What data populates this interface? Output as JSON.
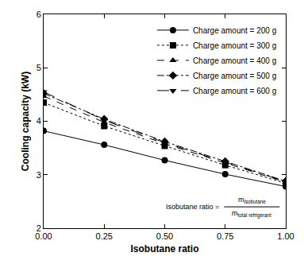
{
  "chart_data": {
    "type": "line",
    "x_label": "Isobutane ratio",
    "y_label": "Cooling capacity (kW)",
    "x": [
      0,
      0.25,
      0.5,
      0.75,
      1.0
    ],
    "series": [
      {
        "name": "Charge amount = 200 g",
        "color": "#000000",
        "marker": "circle",
        "line_style": "solid",
        "values": [
          3.82,
          3.56,
          3.27,
          3.01,
          2.78
        ]
      },
      {
        "name": "Charge amount = 300 g",
        "color": "#000000",
        "marker": "square",
        "line_style": "dot",
        "values": [
          4.35,
          3.91,
          3.54,
          3.18,
          2.84
        ]
      },
      {
        "name": "Charge amount = 400 g",
        "color": "#000000",
        "marker": "triangle-up",
        "line_style": "dash",
        "values": [
          4.47,
          3.98,
          3.58,
          3.22,
          2.86
        ]
      },
      {
        "name": "Charge amount = 500 g",
        "color": "#000000",
        "marker": "diamond",
        "line_style": "dashdot",
        "values": [
          4.52,
          4.04,
          3.62,
          3.25,
          2.88
        ]
      },
      {
        "name": "Charge amount = 600 g",
        "color": "#000000",
        "marker": "triangle-down",
        "line_style": "longdash",
        "values": [
          4.55,
          4.02,
          3.6,
          3.23,
          2.87
        ]
      }
    ],
    "xlim": [
      0,
      1.0
    ],
    "xticks": [
      {
        "value": 0,
        "label": "0.00"
      },
      {
        "value": 0.25,
        "label": "0.25"
      },
      {
        "value": 0.5,
        "label": "0.50"
      },
      {
        "value": 0.75,
        "label": "0.75"
      },
      {
        "value": 1.0,
        "label": "1.00"
      }
    ],
    "ylim": [
      2,
      6
    ],
    "yticks": [
      2,
      3,
      4,
      5,
      6
    ],
    "grid": false,
    "legend": "upper right",
    "annotation": {
      "text": "Isobutane ratio =",
      "numerator": "m",
      "numerator_sub": "isobutane",
      "denominator": "m",
      "denominator_sub": "total refrigerant"
    }
  }
}
